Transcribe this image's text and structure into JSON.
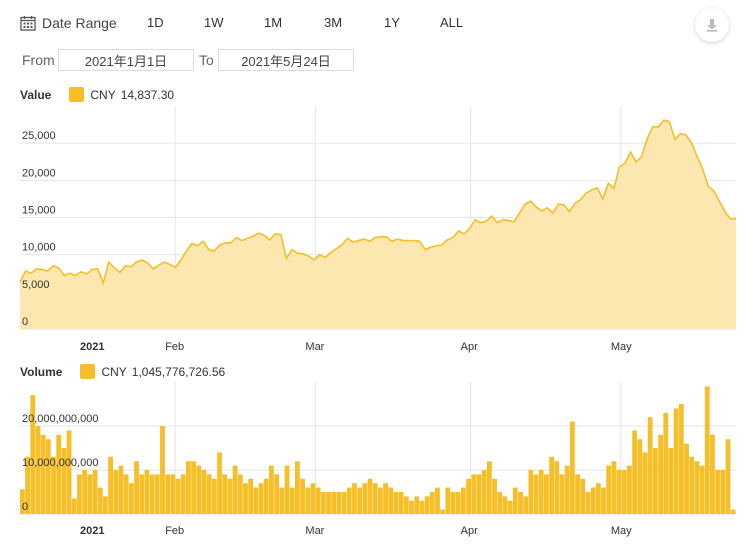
{
  "toolbar": {
    "date_range_label": "Date Range",
    "ranges": [
      "1D",
      "1W",
      "1M",
      "3M",
      "1Y",
      "ALL"
    ],
    "download_icon": "download-icon",
    "calendar_icon": "calendar-icon"
  },
  "date_filter": {
    "from_label": "From",
    "from_value": "2021年1月1日",
    "to_label": "To",
    "to_value": "2021年5月24日"
  },
  "colors": {
    "accent": "#f6be27",
    "area_fill": "#fde7b0",
    "grid": "#e6e6e6"
  },
  "chart_data": [
    {
      "type": "area",
      "legend_title": "Value",
      "series": [
        {
          "name": "CNY",
          "current_value": "14,837.30"
        }
      ],
      "x_tick_labels": [
        "2021",
        "Feb",
        "Mar",
        "Apr",
        "May"
      ],
      "y_tick_labels": [
        "0",
        "5,000",
        "10,000",
        "15,000",
        "20,000",
        "25,000"
      ],
      "ylim": [
        0,
        30000
      ],
      "x_start": "2021-01-01",
      "x_end": "2021-05-24",
      "y_values": [
        6300,
        7800,
        7500,
        8100,
        8000,
        7800,
        8500,
        8200,
        7200,
        7500,
        7200,
        7700,
        7400,
        8000,
        8100,
        6200,
        9000,
        8200,
        7600,
        8500,
        8400,
        9000,
        9300,
        8900,
        8100,
        8600,
        9000,
        8700,
        8300,
        9300,
        10500,
        11500,
        11200,
        11800,
        10700,
        10500,
        11300,
        11600,
        11600,
        12300,
        11900,
        12200,
        12500,
        12900,
        12600,
        12000,
        12800,
        12700,
        9500,
        10700,
        10200,
        10100,
        9800,
        9300,
        10000,
        9600,
        10300,
        10800,
        11300,
        12200,
        11700,
        11900,
        12100,
        11800,
        12300,
        12400,
        12400,
        11800,
        12100,
        11900,
        11900,
        11900,
        11800,
        10700,
        11000,
        11200,
        11300,
        12000,
        12300,
        13200,
        12800,
        13500,
        14700,
        14300,
        14500,
        15200,
        14300,
        14700,
        14600,
        14400,
        15600,
        16800,
        17200,
        16400,
        15900,
        16300,
        15600,
        16800,
        16700,
        15800,
        16900,
        17400,
        18300,
        18700,
        19000,
        17500,
        19600,
        18900,
        21800,
        22300,
        23800,
        22500,
        23200,
        25600,
        27200,
        27200,
        28100,
        27900,
        25500,
        26300,
        26100,
        25000,
        23200,
        21500,
        19200,
        18600,
        17200,
        15800,
        14800,
        14837
      ]
    },
    {
      "type": "bar",
      "legend_title": "Volume",
      "series": [
        {
          "name": "CNY",
          "current_value": "1,045,776,726.56"
        }
      ],
      "x_tick_labels": [
        "2021",
        "Feb",
        "Mar",
        "Apr",
        "May"
      ],
      "y_tick_labels": [
        "0",
        "10,000,000,000",
        "20,000,000,000"
      ],
      "ylim": [
        0,
        30000000000
      ],
      "x_start": "2021-01-01",
      "x_end": "2021-05-24",
      "values": [
        5600000000,
        13000000000,
        27000000000,
        20000000000,
        18000000000,
        17000000000,
        13000000000,
        18000000000,
        15000000000,
        19000000000,
        3500000000,
        9000000000,
        10000000000,
        9000000000,
        10000000000,
        6000000000,
        4000000000,
        13000000000,
        10000000000,
        11000000000,
        9000000000,
        7000000000,
        12000000000,
        9000000000,
        10000000000,
        9000000000,
        9000000000,
        20000000000,
        9000000000,
        9000000000,
        8000000000,
        9000000000,
        12000000000,
        12000000000,
        11000000000,
        10000000000,
        9000000000,
        8000000000,
        14000000000,
        9000000000,
        8000000000,
        11000000000,
        9000000000,
        7000000000,
        8000000000,
        6000000000,
        7000000000,
        8000000000,
        11000000000,
        9000000000,
        6000000000,
        11000000000,
        6000000000,
        12000000000,
        8000000000,
        6000000000,
        7000000000,
        6000000000,
        5000000000,
        5000000000,
        5000000000,
        5000000000,
        5000000000,
        6000000000,
        7000000000,
        6000000000,
        7000000000,
        8000000000,
        7000000000,
        6000000000,
        7000000000,
        6000000000,
        5000000000,
        5000000000,
        4000000000,
        3000000000,
        4000000000,
        3000000000,
        4000000000,
        5000000000,
        6000000000,
        1000000000,
        6000000000,
        5000000000,
        5000000000,
        6000000000,
        8000000000,
        9000000000,
        9000000000,
        10000000000,
        12000000000,
        8000000000,
        5000000000,
        4000000000,
        3000000000,
        6000000000,
        5000000000,
        4000000000,
        10000000000,
        9000000000,
        10000000000,
        9000000000,
        13000000000,
        12000000000,
        9000000000,
        11000000000,
        21000000000,
        9000000000,
        8000000000,
        5000000000,
        6000000000,
        7000000000,
        6000000000,
        11000000000,
        12000000000,
        10000000000,
        10000000000,
        11000000000,
        19000000000,
        17000000000,
        14000000000,
        22000000000,
        15000000000,
        18000000000,
        23000000000,
        15000000000,
        24000000000,
        25000000000,
        16000000000,
        13000000000,
        12000000000,
        11000000000,
        29000000000,
        18000000000,
        10000000000,
        10000000000,
        17000000000,
        1000000000
      ]
    }
  ]
}
